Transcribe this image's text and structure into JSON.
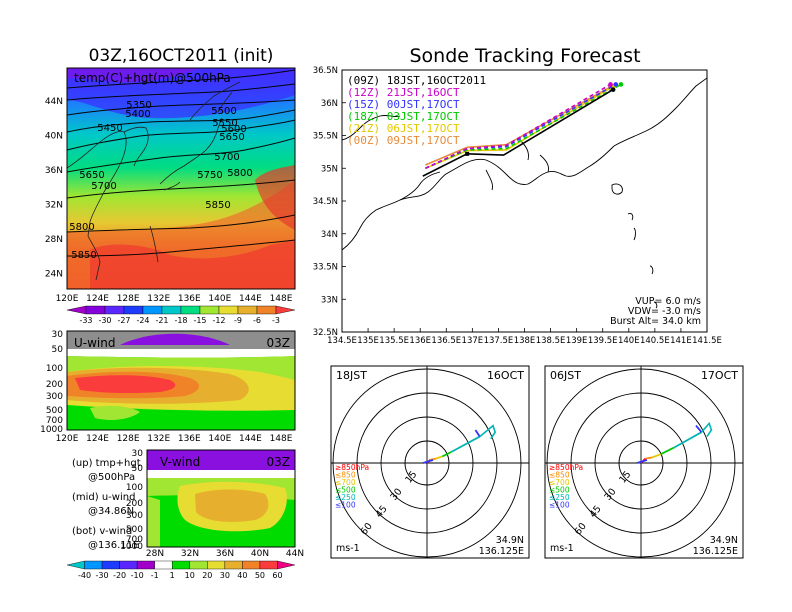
{
  "titles": {
    "left": "03Z,16OCT2011 (init)",
    "right": "Sonde Tracking Forecast"
  },
  "map500": {
    "label": "temp(C)+hgt(m)@500hPa",
    "x_ticks": [
      "120E",
      "124E",
      "128E",
      "132E",
      "136E",
      "140E",
      "144E",
      "148E"
    ],
    "y_ticks": [
      "44N",
      "40N",
      "36N",
      "32N",
      "28N",
      "24N"
    ],
    "contour_labels": [
      "5350",
      "5400",
      "5450",
      "5500",
      "5550",
      "5600",
      "5650",
      "5700",
      "5650",
      "5700",
      "5750",
      "5800",
      "5800",
      "5850",
      "5850"
    ],
    "colorbar_labels": [
      "-33",
      "-30",
      "-27",
      "-24",
      "-21",
      "-18",
      "-15",
      "-12",
      "-9",
      "-6",
      "-3"
    ],
    "colorbar_colors": [
      "#a000c8",
      "#8200dc",
      "#5a28ff",
      "#1e3cff",
      "#0096ff",
      "#00c8c8",
      "#00dc82",
      "#a0e632",
      "#e6dc32",
      "#e6af2d",
      "#f08228",
      "#fa3c3c"
    ]
  },
  "uwind": {
    "label": "U-wind",
    "time": "03Z",
    "y_ticks": [
      "30",
      "50",
      "100",
      "200",
      "300",
      "500",
      "700",
      "1000"
    ],
    "x_ticks": [
      "120E",
      "124E",
      "128E",
      "132E",
      "136E",
      "140E",
      "144E",
      "148E"
    ]
  },
  "vwind": {
    "label": "V-wind",
    "time": "03Z",
    "y_ticks": [
      "30",
      "50",
      "100",
      "200",
      "300",
      "500",
      "700",
      "1000"
    ],
    "x_ticks": [
      "28N",
      "32N",
      "36N",
      "40N",
      "44N"
    ]
  },
  "legend_notes": [
    {
      "a": "(up) tmp+hgt",
      "b": "@500hPa"
    },
    {
      "a": "(mid) u-wind",
      "b": "@34.86N"
    },
    {
      "a": "(bot) v-wind",
      "b": "@136.11E"
    }
  ],
  "wind_colorbar": {
    "labels": [
      "-40",
      "-30",
      "-20",
      "-10",
      "-1",
      "1",
      "10",
      "20",
      "30",
      "40",
      "50",
      "60"
    ],
    "colors": [
      "#00c8c8",
      "#0096ff",
      "#1e3cff",
      "#5a28ff",
      "#a000c8",
      "#ffffff",
      "#00dc00",
      "#a0e632",
      "#e6dc32",
      "#e6af2d",
      "#f08228",
      "#fa3c3c",
      "#f00082"
    ]
  },
  "chart_data": {
    "type": "line",
    "title": "Sonde Tracking Forecast",
    "xlim": [
      134.5,
      141.5
    ],
    "ylim": [
      32.5,
      36.5
    ],
    "x_ticks": [
      "134.5E",
      "135E",
      "135.5E",
      "136E",
      "136.5E",
      "137E",
      "137.5E",
      "138E",
      "138.5E",
      "139E",
      "139.5E",
      "140E",
      "140.5E",
      "141E",
      "141.5E"
    ],
    "y_ticks": [
      "36.5N",
      "36N",
      "35.5N",
      "35N",
      "34.5N",
      "34N",
      "33.5N",
      "33N",
      "32.5N"
    ],
    "series": [
      {
        "name": "(09Z) 18JST,16OCT2011",
        "color": "#000000",
        "dashed": false,
        "x": [
          136.05,
          136.9,
          137.6,
          139.7
        ],
        "y": [
          34.88,
          35.22,
          35.2,
          36.2
        ]
      },
      {
        "name": "(12Z) 21JST,16OCT",
        "color": "#c800c8",
        "dashed": true,
        "x": [
          136.1,
          136.9,
          137.65,
          139.65
        ],
        "y": [
          35.0,
          35.3,
          35.35,
          36.28
        ]
      },
      {
        "name": "(15Z) 00JST,17OCT",
        "color": "#3232ff",
        "dashed": true,
        "x": [
          136.1,
          136.9,
          137.65,
          139.75
        ],
        "y": [
          35.0,
          35.3,
          35.33,
          36.28
        ]
      },
      {
        "name": "(18Z) 03JST,17OCT",
        "color": "#00c800",
        "dashed": true,
        "x": [
          136.1,
          136.9,
          137.65,
          139.85
        ],
        "y": [
          35.0,
          35.28,
          35.3,
          36.28
        ]
      },
      {
        "name": "(21Z) 06JST,17OCT",
        "color": "#e6c800",
        "dashed": false,
        "x": [
          136.1,
          136.9,
          137.65,
          139.7
        ],
        "y": [
          35.0,
          35.27,
          35.28,
          36.25
        ]
      },
      {
        "name": "(00Z) 09JST,17OCT",
        "color": "#e68c3c",
        "dashed": false,
        "x": [
          136.1,
          136.9,
          137.65,
          139.65
        ],
        "y": [
          35.05,
          35.32,
          35.36,
          36.24
        ]
      }
    ],
    "annotations": [
      "VUP= 6.0 m/s",
      "VDW= -3.0 m/s",
      "Burst Alt= 34.0 km"
    ]
  },
  "hodographs": [
    {
      "left": "18JST",
      "right": "16OCT",
      "coord1": "34.9N",
      "coord2": "136.125E"
    },
    {
      "left": "06JST",
      "right": "17OCT",
      "coord1": "34.9N",
      "coord2": "136.125E"
    }
  ],
  "hodo_common": {
    "unit": "ms-1",
    "ring_labels": [
      "15",
      "30",
      "45",
      "60"
    ],
    "levels": [
      {
        "label": "≥850hPa",
        "color": "#ff0000"
      },
      {
        "label": "≤850",
        "color": "#ff8c00"
      },
      {
        "label": "≤700",
        "color": "#e6c800"
      },
      {
        "label": "≤500",
        "color": "#00c800"
      },
      {
        "label": "≤250",
        "color": "#00b4b4"
      },
      {
        "label": "≤100",
        "color": "#3232ff"
      }
    ]
  }
}
